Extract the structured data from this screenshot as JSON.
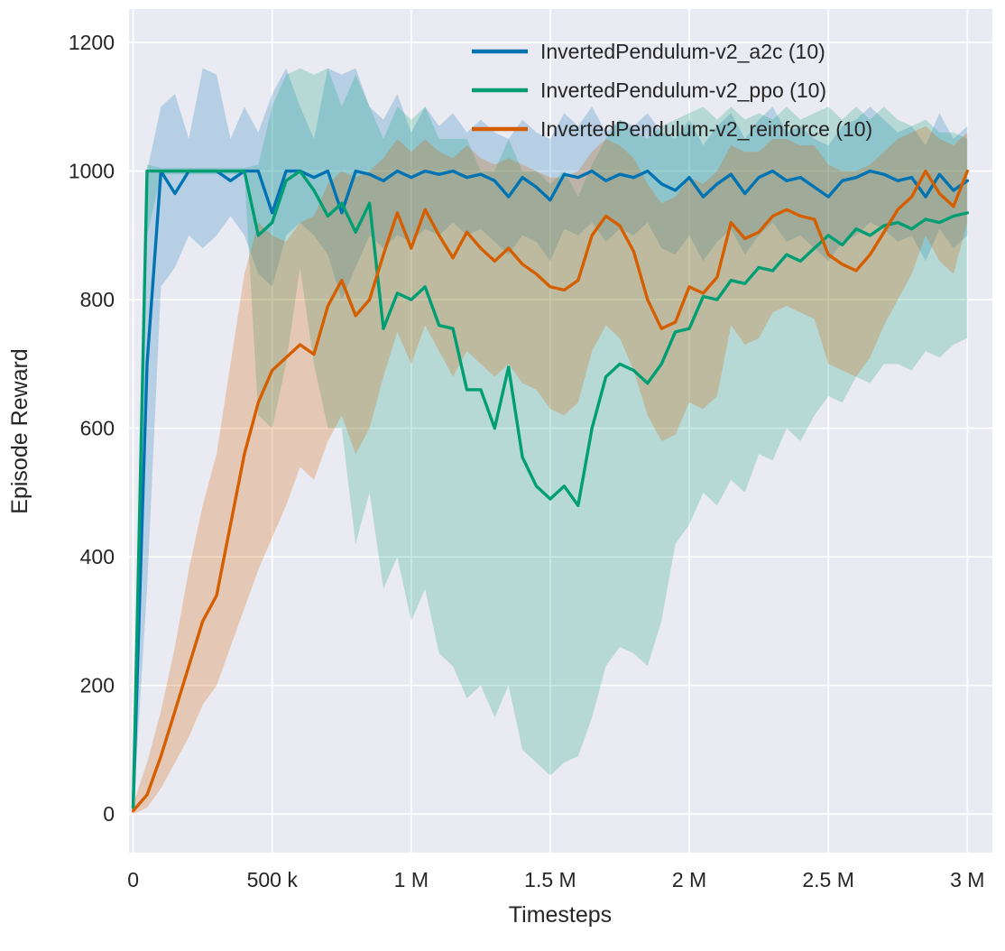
{
  "figure": {
    "bg": "#ffffff",
    "plot_bg": "#eaeaf2",
    "grid_color": "#ffffff",
    "text_color": "#262626"
  },
  "chart_data": {
    "type": "line",
    "title": "",
    "xlabel": "Timesteps",
    "ylabel": "Episode Reward",
    "xlim": [
      -15000,
      3090000
    ],
    "ylim": [
      -60,
      1252
    ],
    "grid": true,
    "legend_position": "upper center",
    "x_ticks": [
      {
        "v": 0,
        "label": "0"
      },
      {
        "v": 500000,
        "label": "500 k"
      },
      {
        "v": 1000000,
        "label": "1 M"
      },
      {
        "v": 1500000,
        "label": "1.5 M"
      },
      {
        "v": 2000000,
        "label": "2 M"
      },
      {
        "v": 2500000,
        "label": "2.5 M"
      },
      {
        "v": 3000000,
        "label": "3 M"
      }
    ],
    "y_ticks": [
      {
        "v": 0,
        "label": "0"
      },
      {
        "v": 200,
        "label": "200"
      },
      {
        "v": 400,
        "label": "400"
      },
      {
        "v": 600,
        "label": "600"
      },
      {
        "v": 800,
        "label": "800"
      },
      {
        "v": 1000,
        "label": "1000"
      },
      {
        "v": 1200,
        "label": "1200"
      }
    ],
    "x": [
      0,
      50000,
      100000,
      150000,
      200000,
      250000,
      300000,
      350000,
      400000,
      450000,
      500000,
      550000,
      600000,
      650000,
      700000,
      750000,
      800000,
      850000,
      900000,
      950000,
      1000000,
      1050000,
      1100000,
      1150000,
      1200000,
      1250000,
      1300000,
      1350000,
      1400000,
      1450000,
      1500000,
      1550000,
      1600000,
      1650000,
      1700000,
      1750000,
      1800000,
      1850000,
      1900000,
      1950000,
      2000000,
      2050000,
      2100000,
      2150000,
      2200000,
      2250000,
      2300000,
      2350000,
      2400000,
      2450000,
      2500000,
      2550000,
      2600000,
      2650000,
      2700000,
      2750000,
      2800000,
      2850000,
      2900000,
      2950000,
      3000000
    ],
    "series": [
      {
        "id": "a2c",
        "name": "InvertedPendulum-v2_a2c (10)",
        "color": "#0173b2",
        "band_opacity": 0.22,
        "mean": [
          10,
          700,
          1000,
          965,
          1000,
          1000,
          1000,
          985,
          1000,
          1000,
          935,
          1000,
          1000,
          990,
          1000,
          935,
          1000,
          995,
          985,
          1000,
          990,
          1000,
          995,
          1000,
          990,
          995,
          985,
          960,
          990,
          975,
          955,
          995,
          990,
          1000,
          985,
          995,
          990,
          1000,
          980,
          970,
          990,
          960,
          980,
          995,
          965,
          990,
          1000,
          985,
          990,
          975,
          960,
          985,
          990,
          1000,
          995,
          985,
          990,
          960,
          995,
          970,
          985
        ],
        "lower": [
          0,
          350,
          820,
          850,
          900,
          880,
          900,
          930,
          900,
          840,
          820,
          900,
          920,
          900,
          870,
          800,
          850,
          900,
          880,
          900,
          890,
          910,
          900,
          920,
          900,
          910,
          890,
          870,
          900,
          890,
          860,
          910,
          900,
          920,
          890,
          910,
          900,
          920,
          880,
          870,
          900,
          860,
          890,
          910,
          870,
          900,
          920,
          890,
          900,
          880,
          860,
          890,
          900,
          920,
          910,
          890,
          900,
          860,
          910,
          880,
          900
        ],
        "upper": [
          20,
          1000,
          1100,
          1120,
          1050,
          1160,
          1150,
          1050,
          1100,
          1060,
          1120,
          1160,
          1100,
          1050,
          1160,
          1150,
          1160,
          1100,
          1080,
          1120,
          1060,
          1100,
          1070,
          1090,
          1060,
          1080,
          1060,
          1050,
          1080,
          1060,
          1050,
          1090,
          1070,
          1100,
          1060,
          1080,
          1070,
          1090,
          1060,
          1050,
          1080,
          1040,
          1070,
          1090,
          1050,
          1080,
          1100,
          1060,
          1070,
          1050,
          1040,
          1070,
          1080,
          1100,
          1080,
          1060,
          1070,
          1040,
          1090,
          1050,
          1070
        ]
      },
      {
        "id": "ppo",
        "name": "InvertedPendulum-v2_ppo (10)",
        "color": "#029e73",
        "band_opacity": 0.22,
        "mean": [
          10,
          1000,
          1000,
          1000,
          1000,
          1000,
          1000,
          1000,
          1000,
          900,
          920,
          985,
          1000,
          970,
          930,
          950,
          905,
          950,
          755,
          810,
          800,
          820,
          760,
          755,
          660,
          660,
          600,
          695,
          555,
          510,
          490,
          510,
          480,
          600,
          680,
          700,
          690,
          670,
          700,
          750,
          755,
          805,
          800,
          830,
          825,
          850,
          845,
          870,
          860,
          880,
          900,
          885,
          910,
          900,
          915,
          920,
          910,
          925,
          920,
          930,
          935
        ],
        "lower": [
          0,
          900,
          995,
          995,
          995,
          995,
          995,
          995,
          995,
          620,
          600,
          700,
          850,
          700,
          600,
          600,
          420,
          500,
          350,
          400,
          300,
          350,
          250,
          230,
          180,
          200,
          150,
          200,
          100,
          80,
          60,
          80,
          90,
          150,
          230,
          260,
          250,
          230,
          300,
          420,
          450,
          500,
          480,
          520,
          500,
          560,
          550,
          600,
          580,
          620,
          650,
          640,
          680,
          670,
          700,
          700,
          690,
          720,
          710,
          730,
          740
        ],
        "upper": [
          30,
          1010,
          1005,
          1005,
          1005,
          1005,
          1005,
          1005,
          1005,
          1010,
          1100,
          1150,
          1160,
          1150,
          1160,
          1100,
          1150,
          1100,
          1050,
          1100,
          1080,
          1100,
          1050,
          1050,
          1050,
          1000,
          1000,
          1050,
          1000,
          1000,
          980,
          1000,
          960,
          1010,
          1050,
          1080,
          1060,
          1050,
          1070,
          1080,
          1090,
          1100,
          1080,
          1100,
          1080,
          1090,
          1080,
          1100,
          1080,
          1090,
          1100,
          1080,
          1100,
          1080,
          1100,
          1080,
          1070,
          1080,
          1060,
          1060,
          1050
        ]
      },
      {
        "id": "reinforce",
        "name": "InvertedPendulum-v2_reinforce (10)",
        "color": "#d55e00",
        "band_opacity": 0.25,
        "mean": [
          5,
          30,
          90,
          160,
          230,
          300,
          340,
          450,
          560,
          640,
          690,
          710,
          730,
          715,
          790,
          830,
          775,
          800,
          870,
          935,
          880,
          940,
          900,
          865,
          905,
          880,
          860,
          880,
          855,
          840,
          820,
          815,
          830,
          900,
          930,
          915,
          875,
          800,
          755,
          765,
          820,
          810,
          835,
          920,
          895,
          905,
          930,
          940,
          930,
          925,
          870,
          855,
          845,
          870,
          905,
          940,
          960,
          1000,
          965,
          945,
          1000
        ],
        "lower": [
          0,
          10,
          40,
          80,
          120,
          170,
          200,
          260,
          320,
          380,
          430,
          480,
          540,
          520,
          580,
          620,
          560,
          600,
          680,
          750,
          700,
          760,
          720,
          680,
          720,
          700,
          680,
          700,
          670,
          660,
          630,
          620,
          640,
          720,
          760,
          740,
          690,
          620,
          580,
          590,
          640,
          630,
          650,
          760,
          730,
          740,
          780,
          790,
          780,
          770,
          700,
          690,
          680,
          710,
          760,
          800,
          840,
          900,
          860,
          840,
          920
        ],
        "upper": [
          15,
          80,
          160,
          260,
          380,
          480,
          560,
          700,
          840,
          920,
          900,
          890,
          920,
          930,
          980,
          1000,
          990,
          1000,
          1020,
          1050,
          1030,
          1050,
          1030,
          1020,
          1040,
          1020,
          1010,
          1020,
          1010,
          1000,
          990,
          990,
          1000,
          1030,
          1050,
          1040,
          1020,
          980,
          950,
          960,
          990,
          980,
          1000,
          1040,
          1030,
          1030,
          1050,
          1050,
          1040,
          1040,
          1010,
          1000,
          1000,
          1010,
          1030,
          1050,
          1060,
          1070,
          1050,
          1040,
          1060
        ]
      }
    ]
  }
}
